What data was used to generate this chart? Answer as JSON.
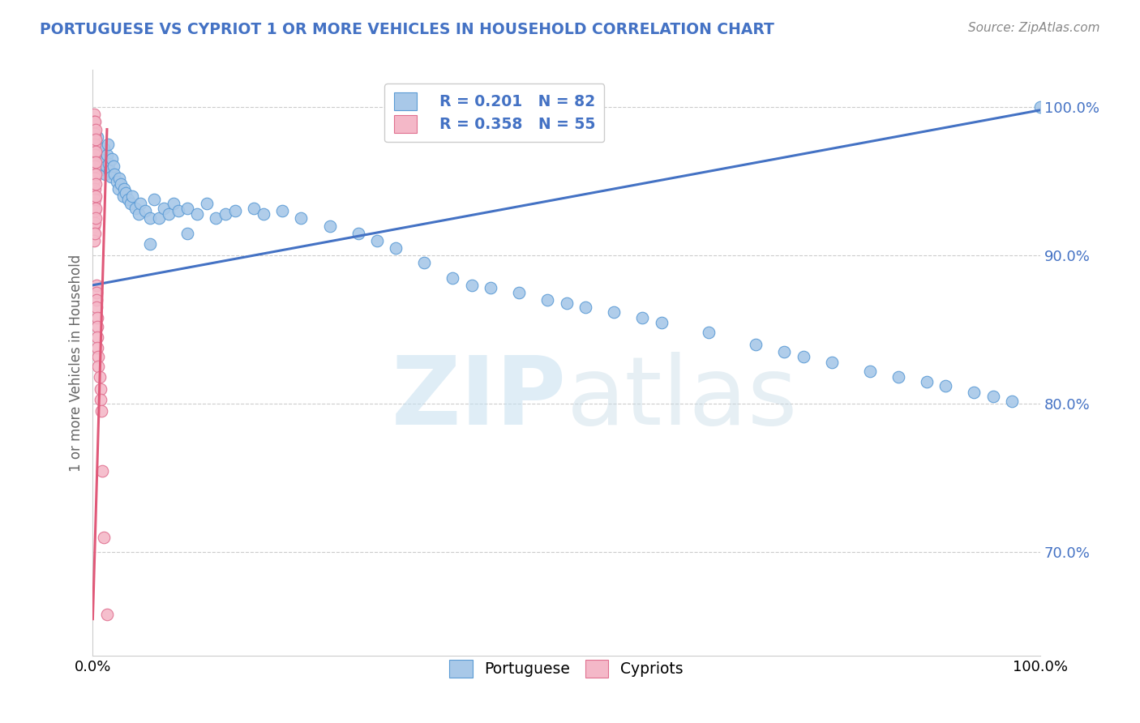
{
  "title": "PORTUGUESE VS CYPRIOT 1 OR MORE VEHICLES IN HOUSEHOLD CORRELATION CHART",
  "source_text": "Source: ZipAtlas.com",
  "ylabel": "1 or more Vehicles in Household",
  "watermark_zip": "ZIP",
  "watermark_atlas": "atlas",
  "xlim": [
    0.0,
    1.0
  ],
  "ylim": [
    0.63,
    1.025
  ],
  "ytick_labels": [
    "70.0%",
    "80.0%",
    "90.0%",
    "100.0%"
  ],
  "ytick_values": [
    0.7,
    0.8,
    0.9,
    1.0
  ],
  "xtick_labels": [
    "0.0%",
    "100.0%"
  ],
  "xtick_values": [
    0.0,
    1.0
  ],
  "legend_r_blue": "R = 0.201",
  "legend_n_blue": "N = 82",
  "legend_r_pink": "R = 0.358",
  "legend_n_pink": "N = 55",
  "blue_fill_color": "#a8c8e8",
  "blue_edge_color": "#5b9bd5",
  "pink_fill_color": "#f4b8c8",
  "pink_edge_color": "#e07090",
  "blue_line_color": "#4472c4",
  "pink_line_color": "#e05878",
  "legend_text_color": "#4472c4",
  "title_color": "#4472c4",
  "blue_scatter_x": [
    0.002,
    0.003,
    0.004,
    0.005,
    0.006,
    0.007,
    0.008,
    0.009,
    0.01,
    0.011,
    0.012,
    0.013,
    0.014,
    0.015,
    0.016,
    0.017,
    0.018,
    0.019,
    0.02,
    0.022,
    0.023,
    0.025,
    0.027,
    0.028,
    0.03,
    0.032,
    0.033,
    0.035,
    0.037,
    0.04,
    0.042,
    0.045,
    0.048,
    0.05,
    0.055,
    0.06,
    0.065,
    0.07,
    0.075,
    0.08,
    0.085,
    0.09,
    0.1,
    0.11,
    0.12,
    0.13,
    0.14,
    0.15,
    0.17,
    0.18,
    0.2,
    0.22,
    0.25,
    0.28,
    0.3,
    0.32,
    0.35,
    0.38,
    0.4,
    0.42,
    0.45,
    0.48,
    0.5,
    0.52,
    0.55,
    0.58,
    0.6,
    0.65,
    0.7,
    0.73,
    0.75,
    0.78,
    0.82,
    0.85,
    0.88,
    0.9,
    0.93,
    0.95,
    0.97,
    1.0,
    0.06,
    0.1
  ],
  "blue_scatter_y": [
    0.97,
    0.963,
    0.975,
    0.98,
    0.96,
    0.968,
    0.962,
    0.971,
    0.965,
    0.958,
    0.972,
    0.955,
    0.96,
    0.968,
    0.975,
    0.962,
    0.957,
    0.953,
    0.965,
    0.96,
    0.955,
    0.95,
    0.945,
    0.952,
    0.948,
    0.94,
    0.945,
    0.942,
    0.938,
    0.935,
    0.94,
    0.932,
    0.928,
    0.935,
    0.93,
    0.925,
    0.938,
    0.925,
    0.932,
    0.928,
    0.935,
    0.93,
    0.932,
    0.928,
    0.935,
    0.925,
    0.928,
    0.93,
    0.932,
    0.928,
    0.93,
    0.925,
    0.92,
    0.915,
    0.91,
    0.905,
    0.895,
    0.885,
    0.88,
    0.878,
    0.875,
    0.87,
    0.868,
    0.865,
    0.862,
    0.858,
    0.855,
    0.848,
    0.84,
    0.835,
    0.832,
    0.828,
    0.822,
    0.818,
    0.815,
    0.812,
    0.808,
    0.805,
    0.802,
    1.0,
    0.908,
    0.915
  ],
  "pink_scatter_x": [
    0.001,
    0.001,
    0.001,
    0.001,
    0.001,
    0.001,
    0.001,
    0.001,
    0.001,
    0.001,
    0.001,
    0.001,
    0.001,
    0.001,
    0.001,
    0.001,
    0.001,
    0.001,
    0.002,
    0.002,
    0.002,
    0.002,
    0.002,
    0.002,
    0.002,
    0.002,
    0.002,
    0.002,
    0.002,
    0.003,
    0.003,
    0.003,
    0.003,
    0.003,
    0.003,
    0.003,
    0.003,
    0.003,
    0.004,
    0.004,
    0.004,
    0.004,
    0.005,
    0.005,
    0.005,
    0.005,
    0.006,
    0.006,
    0.007,
    0.008,
    0.008,
    0.009,
    0.01,
    0.012,
    0.015
  ],
  "pink_scatter_y": [
    0.995,
    0.99,
    0.985,
    0.98,
    0.975,
    0.97,
    0.965,
    0.96,
    0.955,
    0.95,
    0.945,
    0.94,
    0.935,
    0.93,
    0.925,
    0.92,
    0.915,
    0.91,
    0.99,
    0.982,
    0.975,
    0.968,
    0.96,
    0.952,
    0.945,
    0.938,
    0.93,
    0.922,
    0.915,
    0.985,
    0.978,
    0.97,
    0.963,
    0.955,
    0.948,
    0.94,
    0.932,
    0.925,
    0.88,
    0.875,
    0.87,
    0.865,
    0.858,
    0.852,
    0.845,
    0.838,
    0.832,
    0.825,
    0.818,
    0.81,
    0.803,
    0.795,
    0.755,
    0.71,
    0.658
  ],
  "blue_trendline_x": [
    0.0,
    1.0
  ],
  "blue_trendline_y": [
    0.88,
    0.998
  ],
  "pink_trendline_x": [
    0.0,
    0.015
  ],
  "pink_trendline_y": [
    0.655,
    0.985
  ]
}
